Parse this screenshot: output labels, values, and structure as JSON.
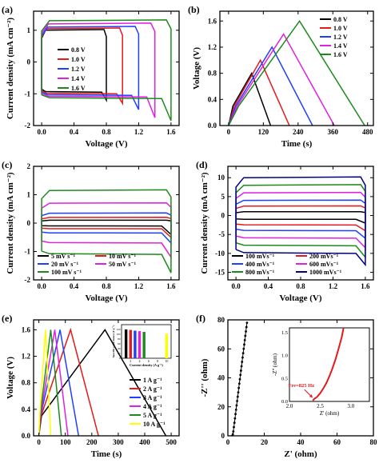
{
  "figure": {
    "width": 474,
    "height": 579
  },
  "chart_data": [
    {
      "id": "a",
      "type": "line",
      "panel_label": "(a)",
      "xlabel": "Voltage (V)",
      "ylabel": "Current density (mA cm⁻²)",
      "xlim": [
        -0.1,
        1.7
      ],
      "ylim": [
        -2.0,
        1.6
      ],
      "xticks": [
        0.0,
        0.4,
        0.8,
        1.2,
        1.6
      ],
      "xtick_labels": [
        "0.0",
        "0.4",
        "0.8",
        "1.2",
        "1.6"
      ],
      "yticks": [
        -2,
        -1,
        0,
        1
      ],
      "ytick_labels": [
        "-2",
        "-1",
        "0",
        "1"
      ],
      "legend": "center",
      "series": [
        {
          "name": "0.8 V",
          "color": "#000000",
          "cv": {
            "vmax": 0.8,
            "upper": 1.0,
            "lower": -0.95,
            "tail": -1.2
          }
        },
        {
          "name": "1.0 V",
          "color": "#e41a1c",
          "cv": {
            "vmax": 1.0,
            "upper": 1.05,
            "lower": -1.0,
            "tail": -1.3
          }
        },
        {
          "name": "1.2 V",
          "color": "#1f3fff",
          "cv": {
            "vmax": 1.2,
            "upper": 1.1,
            "lower": -1.05,
            "tail": -1.5
          }
        },
        {
          "name": "1.4 V",
          "color": "#e020e0",
          "cv": {
            "vmax": 1.4,
            "upper": 1.2,
            "lower": -1.1,
            "tail": -1.75
          }
        },
        {
          "name": "1.6 V",
          "color": "#1e8a1e",
          "cv": {
            "vmax": 1.6,
            "upper": 1.3,
            "lower": -1.15,
            "tail": -1.85
          }
        }
      ]
    },
    {
      "id": "b",
      "type": "line",
      "panel_label": "(b)",
      "xlabel": "Time (s)",
      "ylabel": "Voltage (V)",
      "xlim": [
        -30,
        500
      ],
      "ylim": [
        0,
        1.75
      ],
      "xticks": [
        0,
        120,
        240,
        360,
        480
      ],
      "xtick_labels": [
        "0",
        "120",
        "240",
        "360",
        "480"
      ],
      "yticks": [
        0.0,
        0.4,
        0.8,
        1.2,
        1.6
      ],
      "ytick_labels": [
        "0.0",
        "0.4",
        "0.8",
        "1.2",
        "1.6"
      ],
      "legend": "top-right",
      "series": [
        {
          "name": "0.8 V",
          "color": "#000000",
          "points": [
            [
              0,
              0
            ],
            [
              15,
              0.3
            ],
            [
              80,
              0.8
            ],
            [
              145,
              0
            ]
          ]
        },
        {
          "name": "1.0 V",
          "color": "#e41a1c",
          "points": [
            [
              0,
              0
            ],
            [
              20,
              0.3
            ],
            [
              110,
              1.0
            ],
            [
              210,
              0
            ]
          ]
        },
        {
          "name": "1.2 V",
          "color": "#1f3fff",
          "points": [
            [
              0,
              0
            ],
            [
              25,
              0.3
            ],
            [
              150,
              1.2
            ],
            [
              290,
              0
            ]
          ]
        },
        {
          "name": "1.4 V",
          "color": "#e020e0",
          "points": [
            [
              0,
              0
            ],
            [
              30,
              0.3
            ],
            [
              190,
              1.4
            ],
            [
              365,
              0
            ]
          ]
        },
        {
          "name": "1.6 V",
          "color": "#1e8a1e",
          "points": [
            [
              0,
              0
            ],
            [
              35,
              0.3
            ],
            [
              245,
              1.6
            ],
            [
              470,
              0
            ]
          ]
        }
      ]
    },
    {
      "id": "c",
      "type": "line",
      "panel_label": "(c)",
      "xlabel": "Voltage (V)",
      "ylabel": "Current density (mA cm⁻²)",
      "xlim": [
        -0.1,
        1.7
      ],
      "ylim": [
        -2.0,
        2.0
      ],
      "xticks": [
        0.0,
        0.4,
        0.8,
        1.2,
        1.6
      ],
      "xtick_labels": [
        "0.0",
        "0.4",
        "0.8",
        "1.2",
        "1.6"
      ],
      "yticks": [
        -2,
        -1,
        0,
        1,
        2
      ],
      "ytick_labels": [
        "-2",
        "-1",
        "0",
        "1",
        "2"
      ],
      "legend": "bottom-left",
      "series": [
        {
          "name": "5 mV s⁻¹",
          "color": "#000000",
          "cv": {
            "vmax": 1.6,
            "upper": 0.1,
            "lower": -0.1,
            "tail": -0.4
          }
        },
        {
          "name": "10 mV s⁻¹",
          "color": "#e41a1c",
          "cv": {
            "vmax": 1.6,
            "upper": 0.2,
            "lower": -0.2,
            "tail": -0.5
          }
        },
        {
          "name": "20 mV s⁻¹",
          "color": "#1f3fff",
          "cv": {
            "vmax": 1.6,
            "upper": 0.35,
            "lower": -0.35,
            "tail": -0.7
          }
        },
        {
          "name": "50 mV s⁻¹",
          "color": "#e020e0",
          "cv": {
            "vmax": 1.6,
            "upper": 0.7,
            "lower": -0.7,
            "tail": -1.2
          }
        },
        {
          "name": "100 mV s⁻¹",
          "color": "#1e8a1e",
          "cv": {
            "vmax": 1.6,
            "upper": 1.15,
            "lower": -1.1,
            "tail": -1.75
          }
        }
      ]
    },
    {
      "id": "d",
      "type": "line",
      "panel_label": "(d)",
      "xlabel": "Voltage (V)",
      "ylabel": "Current density (mA cm⁻²)",
      "xlim": [
        -0.1,
        1.7
      ],
      "ylim": [
        -17,
        13
      ],
      "xticks": [
        0.0,
        0.4,
        0.8,
        1.2,
        1.6
      ],
      "xtick_labels": [
        "0.0",
        "0.4",
        "0.8",
        "1.2",
        "1.6"
      ],
      "yticks": [
        -15,
        -10,
        -5,
        0,
        5,
        10
      ],
      "ytick_labels": [
        "-15",
        "-10",
        "-5",
        "0",
        "5",
        "10"
      ],
      "legend": "bottom",
      "series": [
        {
          "name": "100 mVs⁻¹",
          "color": "#000000",
          "cv": {
            "vmax": 1.6,
            "upper": 1.0,
            "lower": -1.0,
            "tail": -2.0
          }
        },
        {
          "name": "200 mVs⁻¹",
          "color": "#e41a1c",
          "cv": {
            "vmax": 1.6,
            "upper": 2.5,
            "lower": -2.5,
            "tail": -4.0
          }
        },
        {
          "name": "400 mVs⁻¹",
          "color": "#1f3fff",
          "cv": {
            "vmax": 1.6,
            "upper": 4.0,
            "lower": -4.0,
            "tail": -6.0
          }
        },
        {
          "name": "600 mVs⁻¹",
          "color": "#e020e0",
          "cv": {
            "vmax": 1.6,
            "upper": 6.0,
            "lower": -6.0,
            "tail": -8.5
          }
        },
        {
          "name": "800 mVs⁻¹",
          "color": "#1e8a1e",
          "cv": {
            "vmax": 1.6,
            "upper": 8.0,
            "lower": -8.0,
            "tail": -11.0
          }
        },
        {
          "name": "1000 mVs⁻¹",
          "color": "#000080",
          "cv": {
            "vmax": 1.6,
            "upper": 10.0,
            "lower": -10.0,
            "tail": -13.0
          }
        }
      ]
    },
    {
      "id": "e",
      "type": "line",
      "panel_label": "(e)",
      "xlabel": "Time (s)",
      "ylabel": "Voltage (V)",
      "xlim": [
        -20,
        530
      ],
      "ylim": [
        0,
        1.75
      ],
      "xticks": [
        0,
        100,
        200,
        300,
        400,
        500
      ],
      "xtick_labels": [
        "0",
        "100",
        "200",
        "300",
        "400",
        "500"
      ],
      "yticks": [
        0.0,
        0.4,
        0.8,
        1.2,
        1.6
      ],
      "ytick_labels": [
        "0.0",
        "0.4",
        "0.8",
        "1.2",
        "1.6"
      ],
      "legend": "bottom-right",
      "series": [
        {
          "name": "1 A g⁻¹",
          "color": "#000000",
          "points": [
            [
              0,
              0
            ],
            [
              10,
              0.3
            ],
            [
              250,
              1.6
            ],
            [
              480,
              0
            ]
          ]
        },
        {
          "name": "2 A g⁻¹",
          "color": "#e41a1c",
          "points": [
            [
              0,
              0
            ],
            [
              8,
              0.3
            ],
            [
              120,
              1.6
            ],
            [
              225,
              0
            ]
          ]
        },
        {
          "name": "3 A g⁻¹",
          "color": "#1f3fff",
          "points": [
            [
              0,
              0
            ],
            [
              6,
              0.3
            ],
            [
              80,
              1.6
            ],
            [
              150,
              0
            ]
          ]
        },
        {
          "name": "4 A g⁻¹",
          "color": "#e020e0",
          "points": [
            [
              0,
              0
            ],
            [
              5,
              0.3
            ],
            [
              60,
              1.6
            ],
            [
              110,
              0
            ]
          ]
        },
        {
          "name": "5 A g⁻¹",
          "color": "#1e8a1e",
          "points": [
            [
              0,
              0
            ],
            [
              4,
              0.3
            ],
            [
              45,
              1.6
            ],
            [
              85,
              0
            ]
          ]
        },
        {
          "name": "10 A g⁻¹",
          "color": "#ffff00",
          "points": [
            [
              0,
              0
            ],
            [
              3,
              0.3
            ],
            [
              25,
              1.6
            ],
            [
              45,
              0
            ]
          ]
        }
      ],
      "inset": {
        "type": "bar",
        "xlabel": "Current density (A g⁻¹)",
        "ylabel": "Specific capacitance (F g⁻¹)",
        "xlim": [
          0,
          11
        ],
        "ylim": [
          0,
          140
        ],
        "xticks": [
          2,
          4,
          6,
          8,
          10
        ],
        "xtick_labels": [
          "2",
          "4",
          "6",
          "8",
          "10"
        ],
        "yticks": [
          0,
          20,
          40,
          60,
          80,
          100,
          120
        ],
        "ytick_labels": [
          "0",
          "20",
          "40",
          "60",
          "80",
          "100",
          "120"
        ],
        "bars": [
          {
            "x": 1,
            "value": 120,
            "color": "#000000"
          },
          {
            "x": 2,
            "value": 118,
            "color": "#e41a1c"
          },
          {
            "x": 3,
            "value": 115,
            "color": "#1f3fff"
          },
          {
            "x": 4,
            "value": 113,
            "color": "#e020e0"
          },
          {
            "x": 5,
            "value": 110,
            "color": "#1e8a1e"
          },
          {
            "x": 10,
            "value": 102,
            "color": "#ffff00"
          }
        ]
      }
    },
    {
      "id": "f",
      "type": "scatter",
      "panel_label": "(f)",
      "xlabel": "Z' (ohm)",
      "ylabel": "-Z'' (ohm)",
      "xlim": [
        0,
        80
      ],
      "ylim": [
        0,
        80
      ],
      "xticks": [
        0,
        20,
        40,
        60,
        80
      ],
      "xtick_labels": [
        "0",
        "20",
        "40",
        "60",
        "80"
      ],
      "yticks": [
        0,
        20,
        40,
        60,
        80
      ],
      "ytick_labels": [
        "0",
        "20",
        "40",
        "60",
        "80"
      ],
      "series": [
        {
          "name": "",
          "color": "#000000",
          "points": [
            [
              2.4,
              0
            ],
            [
              2.7,
              1
            ],
            [
              3.0,
              3
            ],
            [
              3.3,
              6
            ],
            [
              3.6,
              9
            ],
            [
              3.9,
              12
            ],
            [
              4.2,
              15
            ],
            [
              4.5,
              18
            ],
            [
              4.8,
              21
            ],
            [
              5.1,
              24
            ],
            [
              5.4,
              27
            ],
            [
              5.7,
              30
            ],
            [
              6.0,
              33
            ],
            [
              6.3,
              36
            ],
            [
              6.6,
              39
            ],
            [
              6.9,
              42
            ],
            [
              7.2,
              45
            ],
            [
              7.5,
              48
            ],
            [
              7.8,
              51
            ],
            [
              8.1,
              54
            ],
            [
              8.4,
              57
            ],
            [
              8.7,
              60
            ],
            [
              9.0,
              63
            ],
            [
              9.3,
              66
            ],
            [
              9.6,
              69
            ],
            [
              9.9,
              72
            ],
            [
              10.2,
              75
            ],
            [
              10.5,
              78
            ]
          ]
        }
      ],
      "inset": {
        "xlabel": "Z' (ohm)",
        "ylabel": "-Z'' (ohm)",
        "xlim": [
          2.0,
          3.3
        ],
        "ylim": [
          0,
          1.6
        ],
        "xticks": [
          2.0,
          2.5,
          3.0
        ],
        "xtick_labels": [
          "2.0",
          "2.5",
          "3.0"
        ],
        "yticks": [
          0.0,
          0.5,
          1.0,
          1.5
        ],
        "ytick_labels": [
          "0.0",
          "0.5",
          "1.0",
          "1.5"
        ],
        "annotation": "Fre=825 Hz",
        "annotation_point": [
          2.4,
          0.05
        ],
        "color": "#e41a1c",
        "points": [
          [
            2.38,
            0.02
          ],
          [
            2.4,
            0.05
          ],
          [
            2.45,
            0.1
          ],
          [
            2.5,
            0.18
          ],
          [
            2.55,
            0.28
          ],
          [
            2.6,
            0.4
          ],
          [
            2.65,
            0.55
          ],
          [
            2.7,
            0.72
          ],
          [
            2.75,
            0.92
          ],
          [
            2.8,
            1.15
          ],
          [
            2.85,
            1.4
          ],
          [
            2.88,
            1.6
          ]
        ]
      }
    }
  ]
}
